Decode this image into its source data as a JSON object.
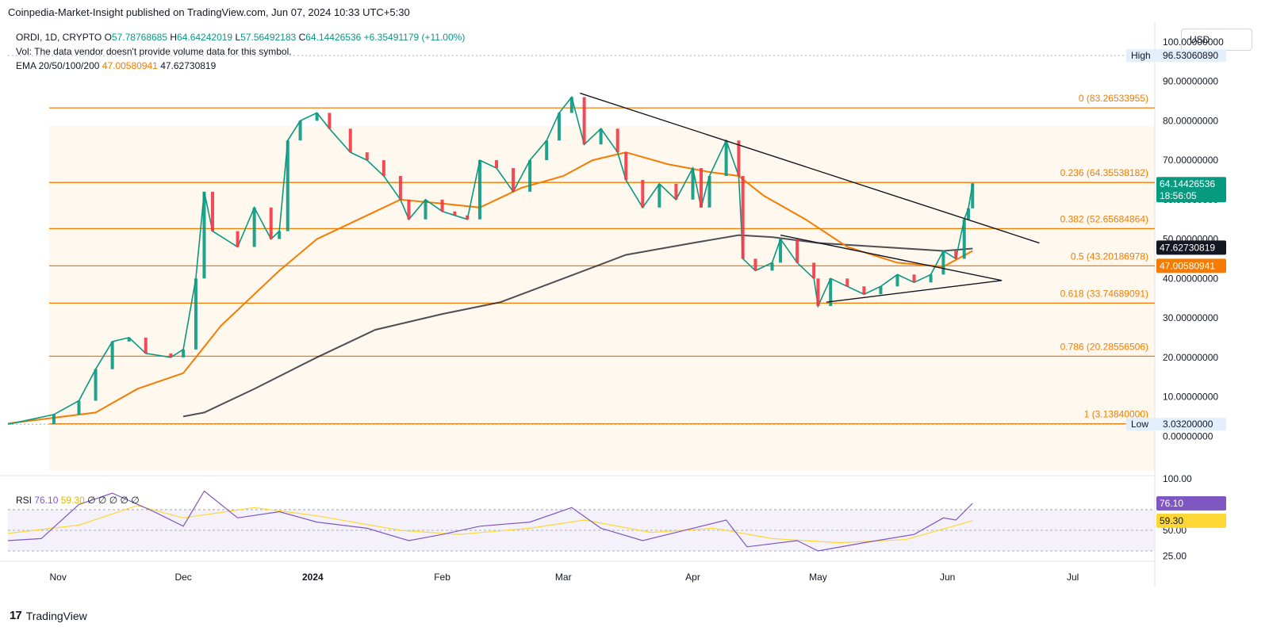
{
  "header": {
    "publisher": "Coinpedia-Market-Insight published on TradingView.com, Jun 07, 2024 10:33 UTC+5:30",
    "symbol": "ORDI, 1D, CRYPTO",
    "open": "57.78768685",
    "high": "64.64242019",
    "low": "57.56492183",
    "close": "64.14426536",
    "change": "+6.35491179 (+11.00%)",
    "vol_note": "Vol: The data vendor doesn't provide volume data for this symbol.",
    "ema_label": "EMA 20/50/100/200",
    "ema_val1": "47.00580941",
    "ema_val2": "47.62730819",
    "currency": "USD"
  },
  "rsi": {
    "label": "RSI",
    "value": "76.10",
    "ma": "59.30",
    "placeholders": [
      "∅",
      "∅",
      "∅",
      "∅",
      "∅"
    ]
  },
  "footer": {
    "brand": "TradingView"
  },
  "colors": {
    "fib": "#f57c00",
    "ema_orange": "#f57c00",
    "ema_black": "#131722",
    "up": "#089981",
    "down": "#f23645",
    "rsi": "#7e57c2",
    "rsi_ma": "#fdd835",
    "rsi_band": "#ede7f6"
  },
  "chart_data": {
    "type": "candlestick",
    "x_axis": [
      "Nov",
      "Dec",
      "2024",
      "Feb",
      "Mar",
      "Apr",
      "May",
      "Jun",
      "Jul"
    ],
    "y_axis": [
      "100.00000000",
      "90.00000000",
      "80.00000000",
      "70.00000000",
      "60.00000000",
      "50.00000000",
      "40.00000000",
      "30.00000000",
      "20.00000000",
      "10.00000000",
      "0.00000000"
    ],
    "ylim": [
      -10,
      105
    ],
    "high": {
      "label": "High",
      "value": "96.53060890"
    },
    "low": {
      "label": "Low",
      "value": "3.03200000"
    },
    "last_price": {
      "value": "64.14426536",
      "countdown": "18:56:05"
    },
    "ema_tags": [
      {
        "value": "47.62730819",
        "color": "#131722"
      },
      {
        "value": "47.00580941",
        "color": "#f57c00"
      }
    ],
    "fib_levels": [
      {
        "ratio": "0",
        "label": "0 (83.26533955)",
        "price": 83.26533955
      },
      {
        "ratio": "0.236",
        "label": "0.236 (64.35538182)",
        "price": 64.35538182
      },
      {
        "ratio": "0.382",
        "label": "0.382 (52.65684864)",
        "price": 52.65684864
      },
      {
        "ratio": "0.5",
        "label": "0.5 (43.20186978)",
        "price": 43.20186978
      },
      {
        "ratio": "0.618",
        "label": "0.618 (33.74689091)",
        "price": 33.74689091
      },
      {
        "ratio": "0.786",
        "label": "0.786 (20.28556506)",
        "price": 20.28556506
      },
      {
        "ratio": "1",
        "label": "1 (3.13840000)",
        "price": 3.1384
      }
    ],
    "price_path": [
      [
        "2023-10-20",
        3.0
      ],
      [
        "2023-10-31",
        5.5
      ],
      [
        "2023-11-06",
        9.0
      ],
      [
        "2023-11-10",
        17.0
      ],
      [
        "2023-11-14",
        24.0
      ],
      [
        "2023-11-18",
        25.0
      ],
      [
        "2023-11-22",
        21.0
      ],
      [
        "2023-11-28",
        20.0
      ],
      [
        "2023-12-01",
        22.0
      ],
      [
        "2023-12-04",
        40.0
      ],
      [
        "2023-12-06",
        62.0
      ],
      [
        "2023-12-08",
        52.0
      ],
      [
        "2023-12-14",
        48.0
      ],
      [
        "2023-12-18",
        58.0
      ],
      [
        "2023-12-22",
        50.0
      ],
      [
        "2023-12-24",
        52.0
      ],
      [
        "2023-12-26",
        75.0
      ],
      [
        "2023-12-29",
        80.0
      ],
      [
        "2024-01-02",
        82.0
      ],
      [
        "2024-01-05",
        78.0
      ],
      [
        "2024-01-10",
        72.0
      ],
      [
        "2024-01-14",
        70.0
      ],
      [
        "2024-01-18",
        66.0
      ],
      [
        "2024-01-22",
        60.0
      ],
      [
        "2024-01-24",
        55.0
      ],
      [
        "2024-01-28",
        60.0
      ],
      [
        "2024-02-01",
        57.0
      ],
      [
        "2024-02-04",
        56.0
      ],
      [
        "2024-02-07",
        55.0
      ],
      [
        "2024-02-10",
        70.0
      ],
      [
        "2024-02-14",
        68.0
      ],
      [
        "2024-02-18",
        62.0
      ],
      [
        "2024-02-22",
        70.0
      ],
      [
        "2024-02-26",
        75.0
      ],
      [
        "2024-02-29",
        82.0
      ],
      [
        "2024-03-03",
        86.0
      ],
      [
        "2024-03-06",
        74.0
      ],
      [
        "2024-03-10",
        78.0
      ],
      [
        "2024-03-14",
        72.0
      ],
      [
        "2024-03-16",
        65.0
      ],
      [
        "2024-03-20",
        58.0
      ],
      [
        "2024-03-24",
        64.0
      ],
      [
        "2024-03-28",
        60.0
      ],
      [
        "2024-04-01",
        68.0
      ],
      [
        "2024-04-03",
        58.0
      ],
      [
        "2024-04-05",
        66.0
      ],
      [
        "2024-04-09",
        75.0
      ],
      [
        "2024-04-12",
        66.0
      ],
      [
        "2024-04-13",
        45.0
      ],
      [
        "2024-04-16",
        42.0
      ],
      [
        "2024-04-20",
        44.0
      ],
      [
        "2024-04-22",
        50.0
      ],
      [
        "2024-04-26",
        44.0
      ],
      [
        "2024-04-30",
        40.0
      ],
      [
        "2024-05-01",
        33.0
      ],
      [
        "2024-05-04",
        40.0
      ],
      [
        "2024-05-08",
        38.0
      ],
      [
        "2024-05-12",
        36.0
      ],
      [
        "2024-05-16",
        38.0
      ],
      [
        "2024-05-20",
        41.0
      ],
      [
        "2024-05-24",
        39.0
      ],
      [
        "2024-05-28",
        41.0
      ],
      [
        "2024-05-31",
        47.0
      ],
      [
        "2024-06-03",
        45.0
      ],
      [
        "2024-06-05",
        55.0
      ],
      [
        "2024-06-06",
        57.8
      ],
      [
        "2024-06-07",
        64.14
      ]
    ],
    "ema_orange_path": [
      [
        "2023-10-20",
        3.2
      ],
      [
        "2023-11-10",
        6.0
      ],
      [
        "2023-11-20",
        12.0
      ],
      [
        "2023-12-01",
        16.0
      ],
      [
        "2023-12-10",
        28.0
      ],
      [
        "2023-12-18",
        36.0
      ],
      [
        "2023-12-24",
        42.0
      ],
      [
        "2024-01-02",
        50.0
      ],
      [
        "2024-01-14",
        56.0
      ],
      [
        "2024-01-22",
        60.0
      ],
      [
        "2024-02-01",
        59.0
      ],
      [
        "2024-02-10",
        58.0
      ],
      [
        "2024-02-20",
        63.0
      ],
      [
        "2024-03-01",
        66.0
      ],
      [
        "2024-03-08",
        70.0
      ],
      [
        "2024-03-16",
        72.0
      ],
      [
        "2024-03-26",
        69.0
      ],
      [
        "2024-04-05",
        67.0
      ],
      [
        "2024-04-12",
        66.0
      ],
      [
        "2024-04-18",
        61.0
      ],
      [
        "2024-04-28",
        55.0
      ],
      [
        "2024-05-08",
        48.0
      ],
      [
        "2024-05-20",
        44.0
      ],
      [
        "2024-05-31",
        43.0
      ],
      [
        "2024-06-07",
        47.0
      ]
    ],
    "ema_black_path": [
      [
        "2023-12-01",
        5.0
      ],
      [
        "2023-12-06",
        6.0
      ],
      [
        "2023-12-18",
        12.0
      ],
      [
        "2024-01-02",
        20.0
      ],
      [
        "2024-01-16",
        27.0
      ],
      [
        "2024-02-01",
        31.0
      ],
      [
        "2024-02-15",
        34.0
      ],
      [
        "2024-03-01",
        40.0
      ],
      [
        "2024-03-16",
        46.0
      ],
      [
        "2024-04-01",
        49.0
      ],
      [
        "2024-04-12",
        51.0
      ],
      [
        "2024-04-20",
        50.5
      ],
      [
        "2024-05-01",
        49.0
      ],
      [
        "2024-05-16",
        48.0
      ],
      [
        "2024-05-31",
        47.0
      ],
      [
        "2024-06-07",
        47.6
      ]
    ],
    "trendlines": [
      [
        [
          "2024-03-05",
          87.0
        ],
        [
          "2024-06-23",
          49.0
        ]
      ],
      [
        [
          "2024-04-22",
          51.0
        ],
        [
          "2024-06-14",
          39.5
        ]
      ],
      [
        [
          "2024-05-03",
          34.0
        ],
        [
          "2024-06-14",
          39.5
        ]
      ]
    ],
    "rsi_axis": [
      "100.00",
      "50.00",
      "25.00"
    ],
    "rsi_band": [
      30,
      70
    ],
    "rsi_path": [
      [
        "2023-10-20",
        40
      ],
      [
        "2023-10-28",
        42
      ],
      [
        "2023-11-06",
        75
      ],
      [
        "2023-11-14",
        86
      ],
      [
        "2023-11-24",
        68
      ],
      [
        "2023-12-01",
        54
      ],
      [
        "2023-12-06",
        88
      ],
      [
        "2023-12-14",
        62
      ],
      [
        "2023-12-24",
        68
      ],
      [
        "2024-01-02",
        58
      ],
      [
        "2024-01-14",
        52
      ],
      [
        "2024-01-24",
        40
      ],
      [
        "2024-02-01",
        46
      ],
      [
        "2024-02-10",
        54
      ],
      [
        "2024-02-22",
        58
      ],
      [
        "2024-03-03",
        72
      ],
      [
        "2024-03-10",
        52
      ],
      [
        "2024-03-20",
        40
      ],
      [
        "2024-04-01",
        52
      ],
      [
        "2024-04-09",
        60
      ],
      [
        "2024-04-14",
        34
      ],
      [
        "2024-04-26",
        40
      ],
      [
        "2024-05-01",
        30
      ],
      [
        "2024-05-12",
        38
      ],
      [
        "2024-05-24",
        46
      ],
      [
        "2024-05-31",
        62
      ],
      [
        "2024-06-03",
        60
      ],
      [
        "2024-06-07",
        76.1
      ]
    ],
    "rsi_ma_path": [
      [
        "2023-10-20",
        47
      ],
      [
        "2023-11-06",
        55
      ],
      [
        "2023-11-20",
        74
      ],
      [
        "2023-12-01",
        62
      ],
      [
        "2023-12-18",
        72
      ],
      [
        "2024-01-02",
        64
      ],
      [
        "2024-01-22",
        50
      ],
      [
        "2024-02-05",
        46
      ],
      [
        "2024-02-22",
        52
      ],
      [
        "2024-03-06",
        60
      ],
      [
        "2024-03-22",
        48
      ],
      [
        "2024-04-06",
        52
      ],
      [
        "2024-04-20",
        42
      ],
      [
        "2024-05-06",
        38
      ],
      [
        "2024-05-22",
        41
      ],
      [
        "2024-06-07",
        59.3
      ]
    ]
  }
}
